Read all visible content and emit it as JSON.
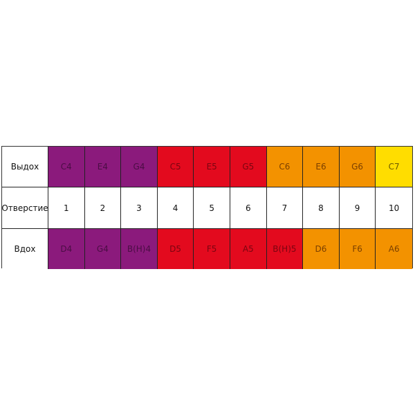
{
  "rows": [
    {
      "label": "Выдох",
      "cells": [
        "C4",
        "E4",
        "G4",
        "C5",
        "E5",
        "G5",
        "C6",
        "E6",
        "G6",
        "C7"
      ]
    },
    {
      "label": "Отверстие",
      "cells": [
        "1",
        "2",
        "3",
        "4",
        "5",
        "6",
        "7",
        "8",
        "9",
        "10"
      ]
    },
    {
      "label": "Вдох",
      "cells": [
        "D4",
        "G4",
        "B(H)4",
        "D5",
        "F5",
        "A5",
        "B(H)5",
        "D6",
        "F6",
        "A6"
      ]
    }
  ],
  "colors": {
    "octave4": "#8b1a7c",
    "octave5": "#e30a1e",
    "octave6": "#f39200",
    "octave7": "#ffdd00"
  }
}
